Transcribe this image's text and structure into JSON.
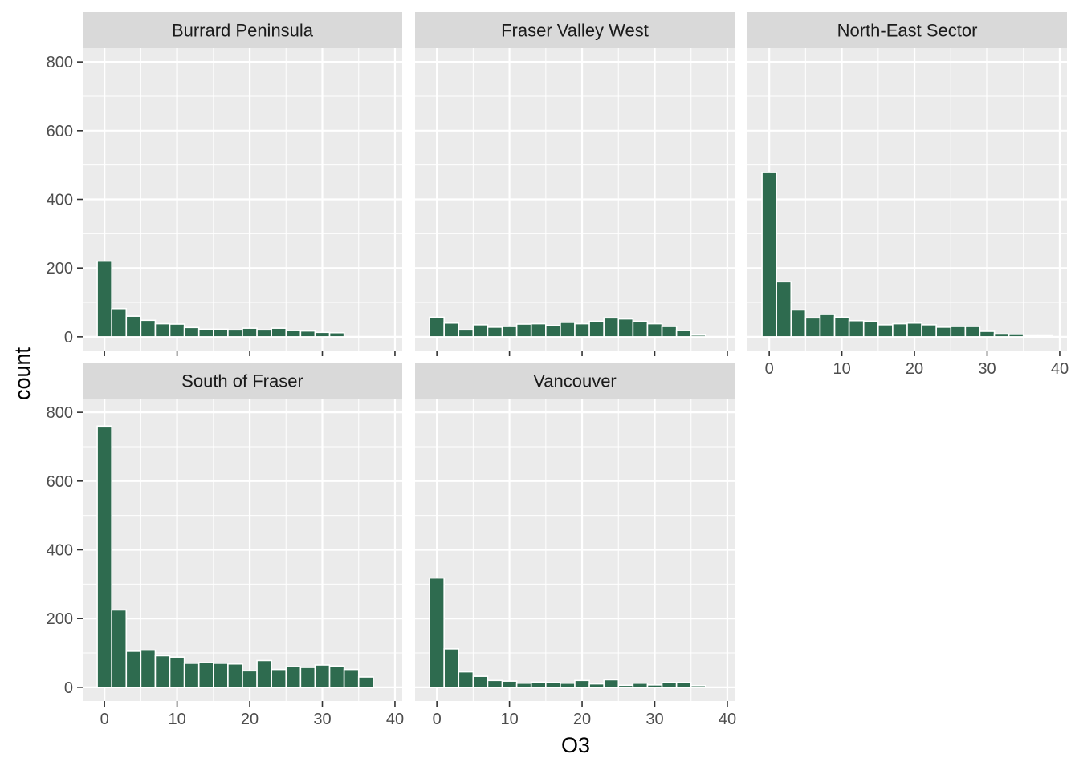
{
  "chart_data": {
    "type": "histogram",
    "facet_by": "region",
    "xlabel": "O3",
    "ylabel": "count",
    "xlim": [
      -3,
      41
    ],
    "ylim": [
      -40,
      840
    ],
    "x_ticks": [
      0,
      10,
      20,
      30,
      40
    ],
    "y_ticks": [
      0,
      200,
      400,
      600,
      800
    ],
    "bin_width": 2,
    "bin_centers": [
      0,
      2,
      4,
      6,
      8,
      10,
      12,
      14,
      16,
      18,
      20,
      22,
      24,
      26,
      28,
      30,
      32,
      34,
      36,
      38
    ],
    "grid": true,
    "bar_color": "#2e6b4f",
    "bar_outline": "#ffffff",
    "panel_background": "#ebebeb",
    "strip_background": "#d9d9d9",
    "panels": [
      {
        "name": "Burrard Peninsula",
        "values": [
          220,
          82,
          60,
          48,
          38,
          37,
          27,
          22,
          22,
          20,
          25,
          20,
          25,
          18,
          17,
          13,
          12,
          0,
          0,
          0
        ]
      },
      {
        "name": "Fraser Valley West",
        "values": [
          57,
          40,
          20,
          35,
          28,
          30,
          37,
          38,
          33,
          42,
          38,
          45,
          55,
          52,
          45,
          38,
          30,
          18,
          5,
          0
        ]
      },
      {
        "name": "North-East Sector",
        "values": [
          478,
          160,
          78,
          55,
          65,
          57,
          47,
          45,
          35,
          38,
          40,
          35,
          28,
          30,
          30,
          16,
          8,
          7,
          3,
          3
        ]
      },
      {
        "name": "South of Fraser",
        "values": [
          760,
          225,
          105,
          108,
          92,
          88,
          70,
          72,
          70,
          68,
          48,
          78,
          52,
          60,
          58,
          65,
          62,
          52,
          30,
          0
        ]
      },
      {
        "name": "Vancouver",
        "values": [
          318,
          112,
          45,
          32,
          20,
          18,
          12,
          15,
          14,
          12,
          20,
          10,
          22,
          6,
          12,
          7,
          14,
          14,
          5,
          0
        ]
      }
    ]
  }
}
